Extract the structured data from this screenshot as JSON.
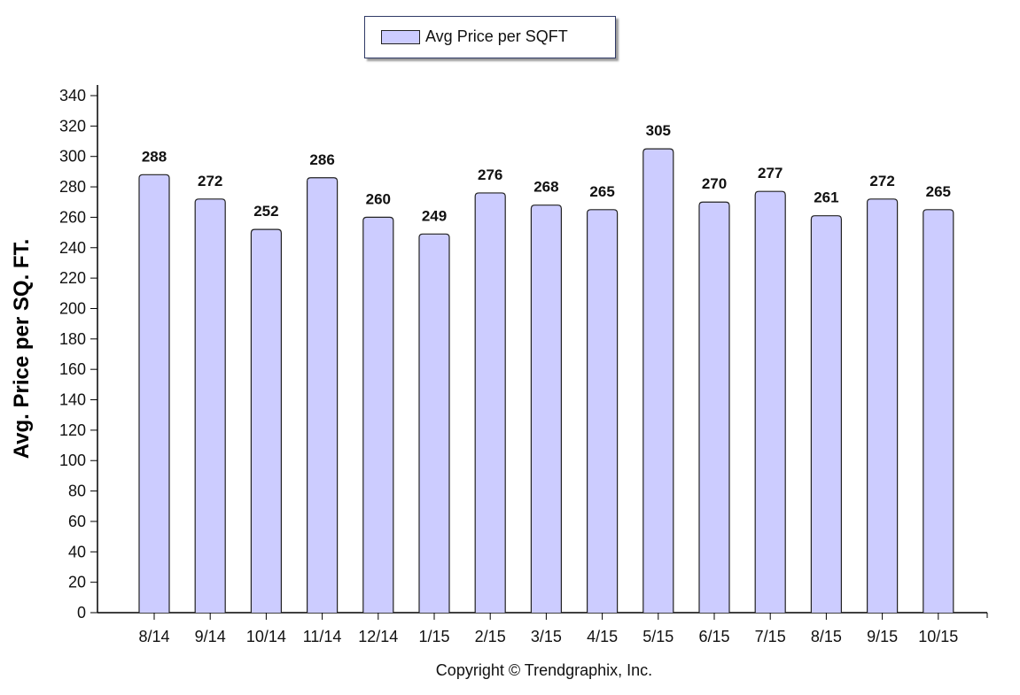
{
  "legend": {
    "label": "Avg Price per SQFT",
    "color": "#ccccff"
  },
  "copyright": "Copyright © Trendgraphix, Inc.",
  "chart_data": {
    "type": "bar",
    "categories": [
      "8/14",
      "9/14",
      "10/14",
      "11/14",
      "12/14",
      "1/15",
      "2/15",
      "3/15",
      "4/15",
      "5/15",
      "6/15",
      "7/15",
      "8/15",
      "9/15",
      "10/15"
    ],
    "series": [
      {
        "name": "Avg Price per SQFT",
        "values": [
          288,
          272,
          252,
          286,
          260,
          249,
          276,
          268,
          265,
          305,
          270,
          277,
          261,
          272,
          265
        ]
      }
    ],
    "ylabel": "Avg. Price per SQ. FT.",
    "xlabel": "",
    "ylim": [
      0,
      340
    ],
    "yticks": [
      0,
      20,
      40,
      60,
      80,
      100,
      120,
      140,
      160,
      180,
      200,
      220,
      240,
      260,
      280,
      300,
      320,
      340
    ],
    "grid": false,
    "legend_position": "top-center",
    "bar_color": "#ccccff",
    "bar_border_color": "#222222"
  }
}
